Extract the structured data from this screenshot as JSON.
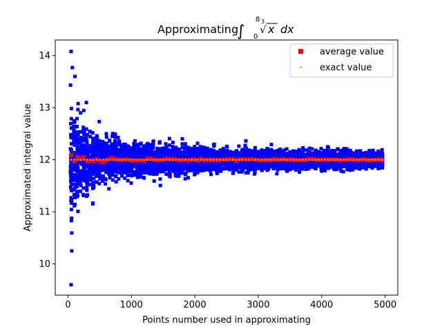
{
  "chart_data": {
    "type": "scatter",
    "title": {
      "prefix": "Approximating ",
      "upper_limit": "8",
      "lower_limit": "0",
      "root_index": "3",
      "radicand": "x",
      "differential": "dx"
    },
    "xlabel": "Points number used in approximating",
    "ylabel": "Approximated integral value",
    "xlim": [
      -200,
      5200
    ],
    "ylim": [
      9.4,
      14.3
    ],
    "x_ticks": [
      0,
      1000,
      2000,
      3000,
      4000,
      5000
    ],
    "y_ticks": [
      10,
      11,
      12,
      13,
      14
    ],
    "grid": false,
    "legend_position": "upper right",
    "sample_x_start": 50,
    "sample_x_end": 4950,
    "sample_x_step": 50,
    "samples_per_x": 50,
    "series": [
      {
        "name": "",
        "color": "#0000ff",
        "marker": "square",
        "description_values": "individual Monte Carlo estimates; spread approx ±2.2 at x=50 narrowing to approx ±0.2 at x=4950; extremes 14.08 and 9.60 near x=50"
      },
      {
        "name": "average value",
        "color": "#ff0000",
        "marker": "square",
        "x_start": 50,
        "x_end": 4950,
        "x_step": 50,
        "values_approx": 12.0
      },
      {
        "name": "exact value",
        "color": "#ffa500",
        "marker": "small-square",
        "x_start": 50,
        "x_end": 4950,
        "x_step": 50,
        "value": 12.0
      }
    ],
    "legend": [
      {
        "label": "average value",
        "color": "#ff0000",
        "marker": "square"
      },
      {
        "label": "exact value",
        "color": "#ffa500",
        "marker": "small-square"
      }
    ]
  }
}
